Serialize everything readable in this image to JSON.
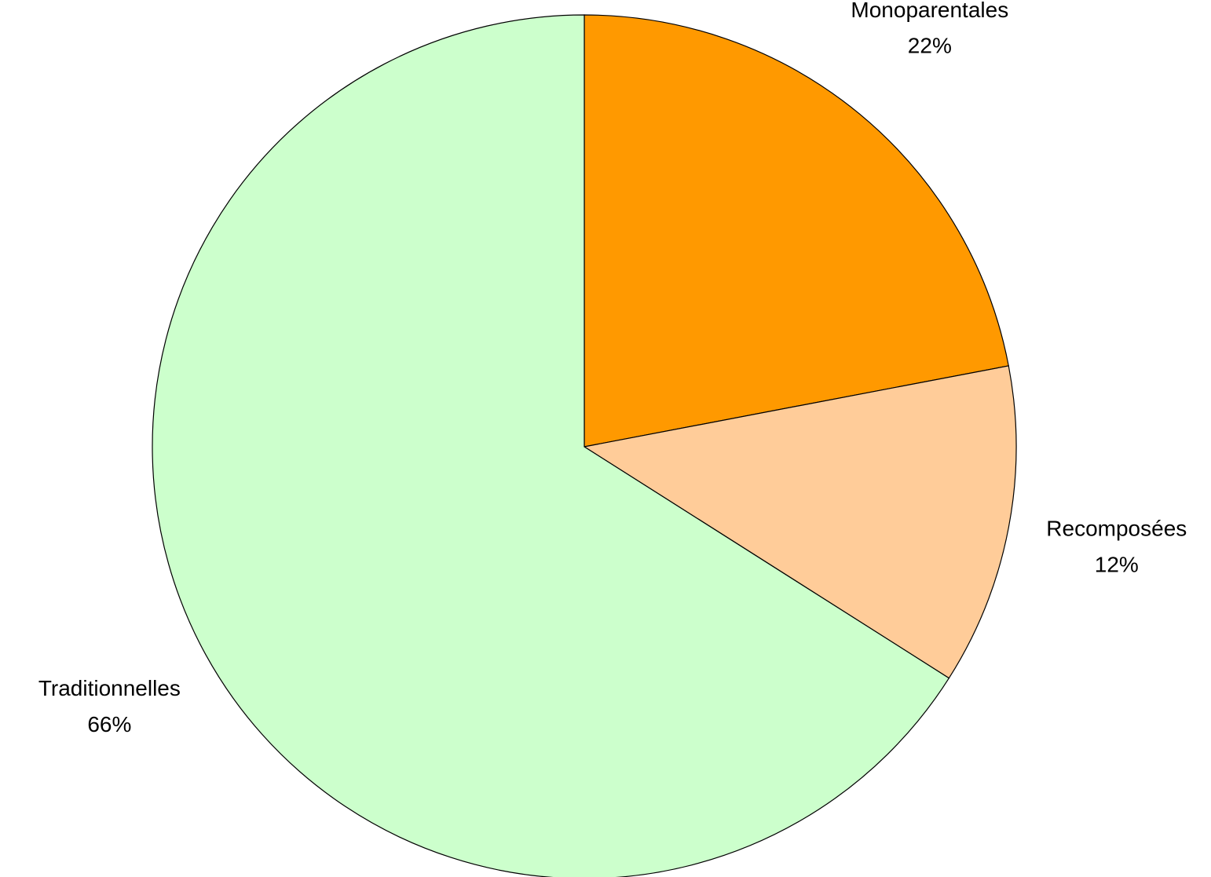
{
  "chart_data": {
    "type": "pie",
    "categories": [
      "Monoparentales",
      "Recomposées",
      "Traditionnelles"
    ],
    "values": [
      22,
      12,
      66
    ],
    "value_labels": [
      "22%",
      "12%",
      "66%"
    ],
    "colors": [
      "#ff9900",
      "#ffcc99",
      "#ccffcc"
    ]
  }
}
